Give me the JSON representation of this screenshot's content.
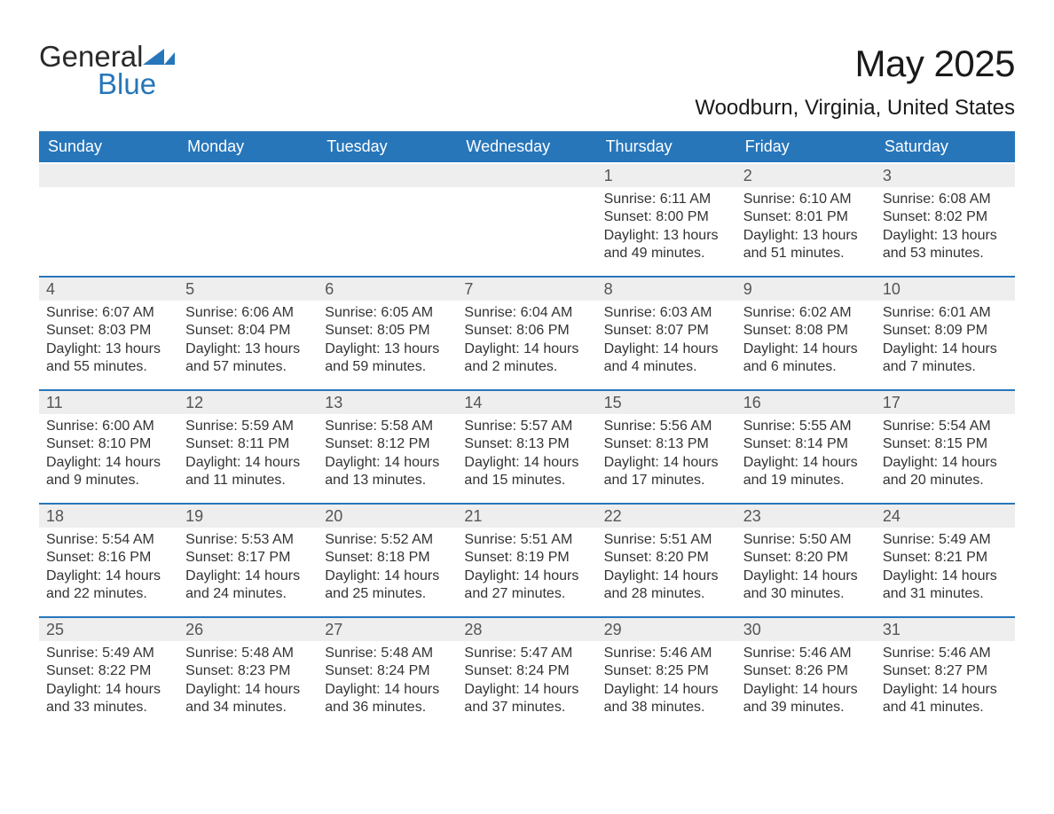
{
  "brand": {
    "word1": "General",
    "word2": "Blue",
    "shape_color": "#2776ba"
  },
  "title": "May 2025",
  "location": "Woodburn, Virginia, United States",
  "colors": {
    "header_bg": "#2776ba",
    "header_text": "#ffffff",
    "daynum_bg": "#eeeeee",
    "daynum_text": "#555555",
    "body_text": "#333333",
    "rule": "#2776ba",
    "page_bg": "#ffffff"
  },
  "typography": {
    "title_fontsize": 42,
    "location_fontsize": 24,
    "dayhead_fontsize": 18,
    "daynum_fontsize": 18,
    "cell_fontsize": 16,
    "logo_fontsize": 33
  },
  "calendar": {
    "columns": [
      "Sunday",
      "Monday",
      "Tuesday",
      "Wednesday",
      "Thursday",
      "Friday",
      "Saturday"
    ],
    "weeks": [
      [
        {
          "day": null
        },
        {
          "day": null
        },
        {
          "day": null
        },
        {
          "day": null
        },
        {
          "day": 1,
          "sunrise": "6:11 AM",
          "sunset": "8:00 PM",
          "daylight": "13 hours and 49 minutes."
        },
        {
          "day": 2,
          "sunrise": "6:10 AM",
          "sunset": "8:01 PM",
          "daylight": "13 hours and 51 minutes."
        },
        {
          "day": 3,
          "sunrise": "6:08 AM",
          "sunset": "8:02 PM",
          "daylight": "13 hours and 53 minutes."
        }
      ],
      [
        {
          "day": 4,
          "sunrise": "6:07 AM",
          "sunset": "8:03 PM",
          "daylight": "13 hours and 55 minutes."
        },
        {
          "day": 5,
          "sunrise": "6:06 AM",
          "sunset": "8:04 PM",
          "daylight": "13 hours and 57 minutes."
        },
        {
          "day": 6,
          "sunrise": "6:05 AM",
          "sunset": "8:05 PM",
          "daylight": "13 hours and 59 minutes."
        },
        {
          "day": 7,
          "sunrise": "6:04 AM",
          "sunset": "8:06 PM",
          "daylight": "14 hours and 2 minutes."
        },
        {
          "day": 8,
          "sunrise": "6:03 AM",
          "sunset": "8:07 PM",
          "daylight": "14 hours and 4 minutes."
        },
        {
          "day": 9,
          "sunrise": "6:02 AM",
          "sunset": "8:08 PM",
          "daylight": "14 hours and 6 minutes."
        },
        {
          "day": 10,
          "sunrise": "6:01 AM",
          "sunset": "8:09 PM",
          "daylight": "14 hours and 7 minutes."
        }
      ],
      [
        {
          "day": 11,
          "sunrise": "6:00 AM",
          "sunset": "8:10 PM",
          "daylight": "14 hours and 9 minutes."
        },
        {
          "day": 12,
          "sunrise": "5:59 AM",
          "sunset": "8:11 PM",
          "daylight": "14 hours and 11 minutes."
        },
        {
          "day": 13,
          "sunrise": "5:58 AM",
          "sunset": "8:12 PM",
          "daylight": "14 hours and 13 minutes."
        },
        {
          "day": 14,
          "sunrise": "5:57 AM",
          "sunset": "8:13 PM",
          "daylight": "14 hours and 15 minutes."
        },
        {
          "day": 15,
          "sunrise": "5:56 AM",
          "sunset": "8:13 PM",
          "daylight": "14 hours and 17 minutes."
        },
        {
          "day": 16,
          "sunrise": "5:55 AM",
          "sunset": "8:14 PM",
          "daylight": "14 hours and 19 minutes."
        },
        {
          "day": 17,
          "sunrise": "5:54 AM",
          "sunset": "8:15 PM",
          "daylight": "14 hours and 20 minutes."
        }
      ],
      [
        {
          "day": 18,
          "sunrise": "5:54 AM",
          "sunset": "8:16 PM",
          "daylight": "14 hours and 22 minutes."
        },
        {
          "day": 19,
          "sunrise": "5:53 AM",
          "sunset": "8:17 PM",
          "daylight": "14 hours and 24 minutes."
        },
        {
          "day": 20,
          "sunrise": "5:52 AM",
          "sunset": "8:18 PM",
          "daylight": "14 hours and 25 minutes."
        },
        {
          "day": 21,
          "sunrise": "5:51 AM",
          "sunset": "8:19 PM",
          "daylight": "14 hours and 27 minutes."
        },
        {
          "day": 22,
          "sunrise": "5:51 AM",
          "sunset": "8:20 PM",
          "daylight": "14 hours and 28 minutes."
        },
        {
          "day": 23,
          "sunrise": "5:50 AM",
          "sunset": "8:20 PM",
          "daylight": "14 hours and 30 minutes."
        },
        {
          "day": 24,
          "sunrise": "5:49 AM",
          "sunset": "8:21 PM",
          "daylight": "14 hours and 31 minutes."
        }
      ],
      [
        {
          "day": 25,
          "sunrise": "5:49 AM",
          "sunset": "8:22 PM",
          "daylight": "14 hours and 33 minutes."
        },
        {
          "day": 26,
          "sunrise": "5:48 AM",
          "sunset": "8:23 PM",
          "daylight": "14 hours and 34 minutes."
        },
        {
          "day": 27,
          "sunrise": "5:48 AM",
          "sunset": "8:24 PM",
          "daylight": "14 hours and 36 minutes."
        },
        {
          "day": 28,
          "sunrise": "5:47 AM",
          "sunset": "8:24 PM",
          "daylight": "14 hours and 37 minutes."
        },
        {
          "day": 29,
          "sunrise": "5:46 AM",
          "sunset": "8:25 PM",
          "daylight": "14 hours and 38 minutes."
        },
        {
          "day": 30,
          "sunrise": "5:46 AM",
          "sunset": "8:26 PM",
          "daylight": "14 hours and 39 minutes."
        },
        {
          "day": 31,
          "sunrise": "5:46 AM",
          "sunset": "8:27 PM",
          "daylight": "14 hours and 41 minutes."
        }
      ]
    ],
    "labels": {
      "sunrise": "Sunrise:",
      "sunset": "Sunset:",
      "daylight": "Daylight:"
    }
  }
}
